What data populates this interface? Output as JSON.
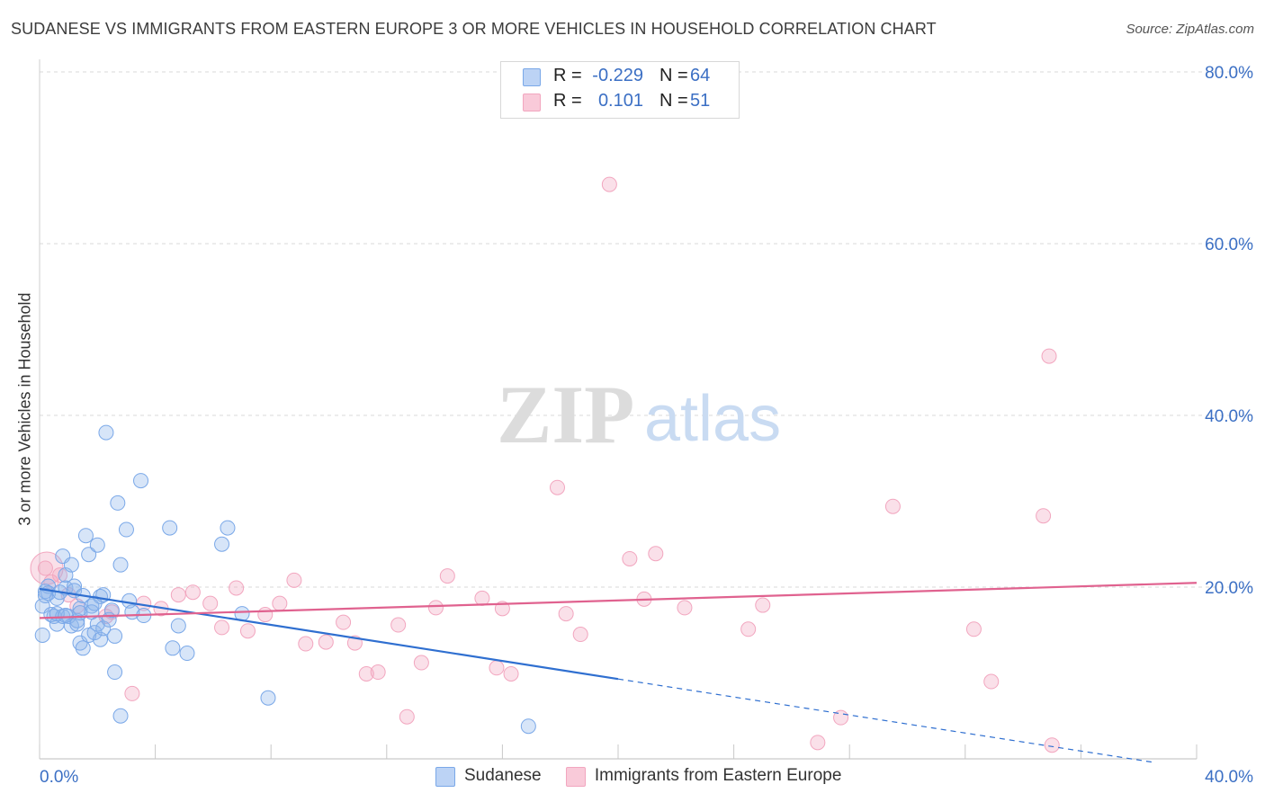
{
  "title": "SUDANESE VS IMMIGRANTS FROM EASTERN EUROPE 3 OR MORE VEHICLES IN HOUSEHOLD CORRELATION CHART",
  "source": "Source: ZipAtlas.com",
  "watermark": {
    "zip": "ZIP",
    "atlas": "atlas"
  },
  "legend_top": [
    {
      "r_label": "R =",
      "r_value": "-0.229",
      "n_label": "N =",
      "n_value": "64"
    },
    {
      "r_label": "R =",
      "r_value": "0.101",
      "n_label": "N =",
      "n_value": "51"
    }
  ],
  "chart_data": {
    "type": "scatter",
    "title": "SUDANESE VS IMMIGRANTS FROM EASTERN EUROPE 3 OR MORE VEHICLES IN HOUSEHOLD CORRELATION CHART",
    "xlabel": "",
    "ylabel": "3 or more Vehicles in Household",
    "xlim": [
      0,
      40
    ],
    "ylim": [
      0,
      80
    ],
    "x_tick_labels": [
      "0.0%",
      "40.0%"
    ],
    "y_ticks": [
      20,
      40,
      60,
      80
    ],
    "y_tick_labels": [
      "20.0%",
      "40.0%",
      "60.0%",
      "80.0%"
    ],
    "grid": true,
    "legend_position": "bottom-center",
    "colors": {
      "sudanese": "#7aa8e8",
      "sudanese_line": "#2f6fd0",
      "eastern_europe": "#f2a6bf",
      "eastern_europe_line": "#e0628f",
      "axis_text": "#3b6fc4"
    },
    "series": [
      {
        "name": "Sudanese",
        "r": -0.229,
        "n": 64,
        "trend": {
          "x0": 0,
          "y0": 19.8,
          "x1": 20,
          "y1": 9.3,
          "dash_to_x": 38.5,
          "dash_to_y": -0.4
        },
        "points": [
          [
            0.1,
            14.4
          ],
          [
            0.1,
            17.8
          ],
          [
            0.2,
            19.5
          ],
          [
            0.3,
            20.1
          ],
          [
            0.3,
            19.3
          ],
          [
            0.4,
            16.8
          ],
          [
            0.5,
            16.6
          ],
          [
            0.6,
            15.7
          ],
          [
            0.6,
            18.7
          ],
          [
            0.7,
            19.4
          ],
          [
            0.8,
            16.6
          ],
          [
            0.8,
            23.6
          ],
          [
            0.9,
            21.4
          ],
          [
            0.9,
            19.9
          ],
          [
            1.0,
            16.6
          ],
          [
            1.1,
            15.5
          ],
          [
            1.1,
            22.6
          ],
          [
            1.2,
            20.1
          ],
          [
            1.2,
            19.6
          ],
          [
            1.3,
            16.1
          ],
          [
            1.3,
            15.7
          ],
          [
            1.4,
            17.5
          ],
          [
            1.4,
            17.0
          ],
          [
            1.4,
            13.5
          ],
          [
            1.5,
            12.9
          ],
          [
            1.6,
            26.0
          ],
          [
            1.7,
            23.8
          ],
          [
            1.7,
            14.4
          ],
          [
            1.8,
            17.8
          ],
          [
            1.9,
            14.7
          ],
          [
            2.0,
            15.7
          ],
          [
            2.0,
            24.9
          ],
          [
            2.1,
            18.9
          ],
          [
            2.1,
            13.9
          ],
          [
            2.2,
            19.1
          ],
          [
            2.2,
            15.2
          ],
          [
            2.3,
            38.0
          ],
          [
            2.4,
            16.2
          ],
          [
            2.6,
            10.1
          ],
          [
            2.6,
            14.3
          ],
          [
            2.7,
            29.8
          ],
          [
            2.8,
            5.0
          ],
          [
            2.8,
            22.6
          ],
          [
            3.0,
            26.7
          ],
          [
            3.1,
            18.4
          ],
          [
            3.2,
            17.1
          ],
          [
            3.5,
            32.4
          ],
          [
            3.6,
            16.7
          ],
          [
            4.5,
            26.9
          ],
          [
            4.6,
            12.9
          ],
          [
            4.8,
            15.5
          ],
          [
            5.1,
            12.3
          ],
          [
            6.3,
            25.0
          ],
          [
            6.5,
            26.9
          ],
          [
            7.0,
            16.9
          ],
          [
            7.9,
            7.1
          ],
          [
            16.9,
            3.8
          ],
          [
            1.8,
            17.1
          ],
          [
            2.5,
            17.3
          ],
          [
            0.2,
            19.0
          ],
          [
            0.6,
            16.9
          ],
          [
            1.9,
            18.1
          ],
          [
            0.9,
            16.7
          ],
          [
            1.5,
            19.0
          ]
        ]
      },
      {
        "name": "Immigrants from Eastern Europe",
        "r": 0.101,
        "n": 51,
        "trend": {
          "x0": 0,
          "y0": 16.4,
          "x1": 40,
          "y1": 20.5
        },
        "points": [
          [
            0.2,
            22.2
          ],
          [
            0.4,
            20.6
          ],
          [
            0.7,
            21.4
          ],
          [
            1.0,
            19.1
          ],
          [
            1.3,
            17.8
          ],
          [
            2.3,
            16.6
          ],
          [
            2.5,
            17.1
          ],
          [
            3.2,
            7.6
          ],
          [
            3.6,
            18.1
          ],
          [
            4.2,
            17.5
          ],
          [
            4.8,
            19.1
          ],
          [
            5.3,
            19.4
          ],
          [
            5.9,
            18.1
          ],
          [
            6.3,
            15.3
          ],
          [
            6.8,
            19.9
          ],
          [
            7.2,
            14.9
          ],
          [
            7.8,
            16.8
          ],
          [
            8.3,
            18.1
          ],
          [
            8.8,
            20.8
          ],
          [
            9.2,
            13.4
          ],
          [
            9.9,
            13.6
          ],
          [
            10.5,
            15.9
          ],
          [
            10.9,
            13.5
          ],
          [
            11.3,
            9.9
          ],
          [
            11.7,
            10.1
          ],
          [
            12.4,
            15.6
          ],
          [
            12.7,
            4.9
          ],
          [
            13.2,
            11.2
          ],
          [
            13.7,
            17.6
          ],
          [
            14.1,
            21.3
          ],
          [
            15.3,
            18.7
          ],
          [
            15.8,
            10.6
          ],
          [
            16.0,
            17.5
          ],
          [
            16.3,
            9.9
          ],
          [
            17.9,
            31.6
          ],
          [
            18.2,
            16.9
          ],
          [
            18.7,
            14.5
          ],
          [
            19.7,
            66.9
          ],
          [
            20.4,
            23.3
          ],
          [
            20.9,
            18.6
          ],
          [
            21.3,
            23.9
          ],
          [
            22.3,
            17.6
          ],
          [
            24.5,
            15.1
          ],
          [
            25.0,
            17.9
          ],
          [
            26.9,
            1.9
          ],
          [
            27.7,
            4.8
          ],
          [
            29.5,
            29.4
          ],
          [
            32.3,
            15.1
          ],
          [
            32.9,
            9.0
          ],
          [
            34.7,
            28.3
          ],
          [
            35.0,
            1.6
          ]
        ],
        "extra_high_point": [
          34.9,
          46.9
        ]
      }
    ]
  },
  "bottom_legend": [
    "Sudanese",
    "Immigrants from Eastern Europe"
  ]
}
